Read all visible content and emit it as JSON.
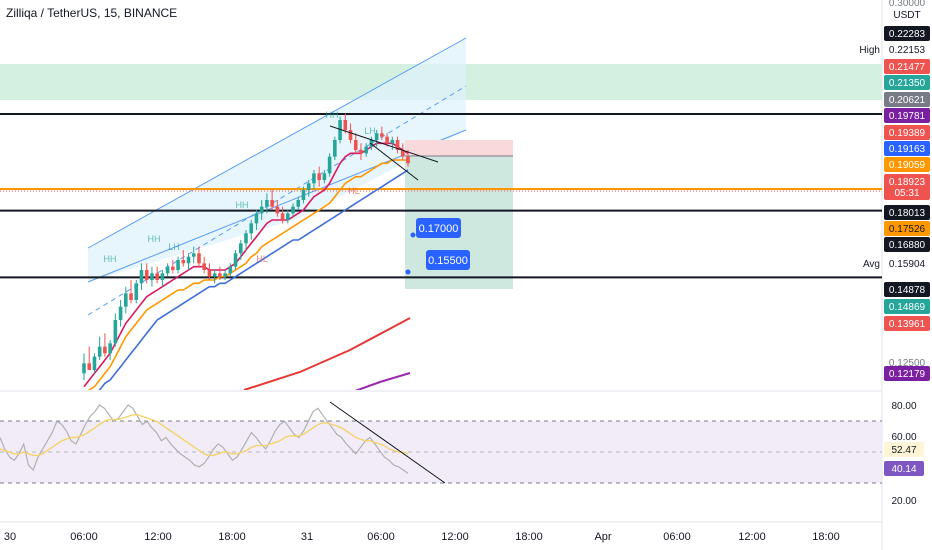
{
  "title": "Zilliqa / TetherUS, 15, BINANCE",
  "currency": "USDT",
  "colors": {
    "candle_up": "#26a69a",
    "candle_down": "#ef5350",
    "ma_red": "#e53935",
    "ma_purple": "#9c27b0",
    "ma_orange": "#ff9800",
    "ma_blue": "#3f6ed8",
    "ma_dark": "#d81b60",
    "channel": "#5b9cf6",
    "channel_fill": "#dff1fb",
    "zone": "#cfeedd",
    "target_zone": "#cfe8df",
    "stop_zone": "#fad9dc",
    "rsi_line": "#b0b0b0",
    "rsi_signal": "#f3d36b",
    "rsi_band": "#ede7f6"
  },
  "chart_data": [
    {
      "type": "candlestick",
      "name": "price",
      "x_axis": {
        "tick_labels": [
          "30",
          "06:00",
          "12:00",
          "18:00",
          "31",
          "06:00",
          "12:00",
          "18:00",
          "Apr",
          "06:00",
          "12:00",
          "18:00"
        ]
      },
      "y_axis": {
        "scale": "linear",
        "range": [
          0.115,
          0.3
        ],
        "tick_labels": [
          "0.30000",
          "0.12500"
        ]
      },
      "price_labels": [
        {
          "value": "0.22283",
          "bg": "#131722",
          "fg": "#ffffff"
        },
        {
          "value": "0.22153",
          "label": "High",
          "bg": "#ffffff",
          "fg": "#131722"
        },
        {
          "value": "0.21477",
          "bg": "#ef5350",
          "fg": "#ffffff"
        },
        {
          "value": "0.21350",
          "bg": "#26a69a",
          "fg": "#ffffff"
        },
        {
          "value": "0.20621",
          "bg": "#787b86",
          "fg": "#ffffff"
        },
        {
          "value": "0.19781",
          "bg": "#7b1fa2",
          "fg": "#ffffff"
        },
        {
          "value": "0.19389",
          "bg": "#ef5350",
          "fg": "#ffffff"
        },
        {
          "value": "0.19163",
          "bg": "#2962ff",
          "fg": "#ffffff"
        },
        {
          "value": "0.19059",
          "bg": "#ff9800",
          "fg": "#ffffff"
        },
        {
          "value": "0.18923",
          "sub": "05:31",
          "bg": "#ef5350",
          "fg": "#ffffff"
        },
        {
          "value": "0.18013",
          "bg": "#131722",
          "fg": "#ffffff"
        },
        {
          "value": "0.17526",
          "bg": "#ff9800",
          "fg": "#131722"
        },
        {
          "value": "0.16880",
          "bg": "#131722",
          "fg": "#ffffff"
        },
        {
          "value": "0.15904",
          "label": "Avg",
          "bg": "#ffffff",
          "fg": "#131722"
        },
        {
          "value": "0.14878",
          "bg": "#131722",
          "fg": "#ffffff"
        },
        {
          "value": "0.14869",
          "bg": "#26a69a",
          "fg": "#ffffff"
        },
        {
          "value": "0.13961",
          "bg": "#ef5350",
          "fg": "#ffffff"
        },
        {
          "value": "0.12179",
          "bg": "#7b1fa2",
          "fg": "#ffffff"
        }
      ],
      "horizontal_levels": [
        {
          "value": 0.1978,
          "color": "#131722"
        },
        {
          "value": 0.1753,
          "color": "#ff9800"
        },
        {
          "value": 0.1688,
          "color": "#131722"
        },
        {
          "value": 0.1488,
          "color": "#131722"
        }
      ],
      "zones": [
        {
          "from": 0.2062,
          "to": 0.2148,
          "color": "#cfeedd"
        }
      ],
      "pattern_labels": [
        "HH",
        "HH",
        "HH",
        "HH",
        "LH",
        "LH",
        "HL",
        "HL"
      ],
      "order_labels": [
        "0.17000",
        "0.15500"
      ],
      "candles": [
        {
          "o": 0.12,
          "h": 0.126,
          "l": 0.118,
          "c": 0.123
        },
        {
          "o": 0.123,
          "h": 0.128,
          "l": 0.121,
          "c": 0.121
        },
        {
          "o": 0.121,
          "h": 0.126,
          "l": 0.12,
          "c": 0.125
        },
        {
          "o": 0.125,
          "h": 0.131,
          "l": 0.124,
          "c": 0.128
        },
        {
          "o": 0.128,
          "h": 0.132,
          "l": 0.125,
          "c": 0.126
        },
        {
          "o": 0.126,
          "h": 0.13,
          "l": 0.124,
          "c": 0.129
        },
        {
          "o": 0.129,
          "h": 0.138,
          "l": 0.128,
          "c": 0.136
        },
        {
          "o": 0.136,
          "h": 0.142,
          "l": 0.134,
          "c": 0.14
        },
        {
          "o": 0.14,
          "h": 0.146,
          "l": 0.138,
          "c": 0.144
        },
        {
          "o": 0.144,
          "h": 0.148,
          "l": 0.141,
          "c": 0.142
        },
        {
          "o": 0.142,
          "h": 0.148,
          "l": 0.141,
          "c": 0.147
        },
        {
          "o": 0.147,
          "h": 0.153,
          "l": 0.145,
          "c": 0.151
        },
        {
          "o": 0.151,
          "h": 0.153,
          "l": 0.147,
          "c": 0.148
        },
        {
          "o": 0.148,
          "h": 0.152,
          "l": 0.146,
          "c": 0.15
        },
        {
          "o": 0.15,
          "h": 0.152,
          "l": 0.147,
          "c": 0.148
        },
        {
          "o": 0.148,
          "h": 0.151,
          "l": 0.146,
          "c": 0.15
        },
        {
          "o": 0.15,
          "h": 0.153,
          "l": 0.149,
          "c": 0.152
        },
        {
          "o": 0.152,
          "h": 0.154,
          "l": 0.15,
          "c": 0.151
        },
        {
          "o": 0.151,
          "h": 0.155,
          "l": 0.15,
          "c": 0.154
        },
        {
          "o": 0.154,
          "h": 0.157,
          "l": 0.152,
          "c": 0.153
        },
        {
          "o": 0.153,
          "h": 0.156,
          "l": 0.151,
          "c": 0.155
        },
        {
          "o": 0.155,
          "h": 0.158,
          "l": 0.153,
          "c": 0.156
        },
        {
          "o": 0.156,
          "h": 0.158,
          "l": 0.152,
          "c": 0.153
        },
        {
          "o": 0.153,
          "h": 0.155,
          "l": 0.15,
          "c": 0.151
        },
        {
          "o": 0.151,
          "h": 0.153,
          "l": 0.148,
          "c": 0.149
        },
        {
          "o": 0.149,
          "h": 0.151,
          "l": 0.147,
          "c": 0.15
        },
        {
          "o": 0.15,
          "h": 0.152,
          "l": 0.148,
          "c": 0.149
        },
        {
          "o": 0.149,
          "h": 0.151,
          "l": 0.148,
          "c": 0.15
        },
        {
          "o": 0.15,
          "h": 0.153,
          "l": 0.149,
          "c": 0.152
        },
        {
          "o": 0.152,
          "h": 0.157,
          "l": 0.151,
          "c": 0.156
        },
        {
          "o": 0.156,
          "h": 0.16,
          "l": 0.154,
          "c": 0.159
        },
        {
          "o": 0.159,
          "h": 0.163,
          "l": 0.157,
          "c": 0.162
        },
        {
          "o": 0.162,
          "h": 0.166,
          "l": 0.16,
          "c": 0.165
        },
        {
          "o": 0.165,
          "h": 0.169,
          "l": 0.163,
          "c": 0.168
        },
        {
          "o": 0.168,
          "h": 0.172,
          "l": 0.166,
          "c": 0.17
        },
        {
          "o": 0.17,
          "h": 0.174,
          "l": 0.168,
          "c": 0.172
        },
        {
          "o": 0.172,
          "h": 0.175,
          "l": 0.169,
          "c": 0.17
        },
        {
          "o": 0.17,
          "h": 0.172,
          "l": 0.167,
          "c": 0.168
        },
        {
          "o": 0.168,
          "h": 0.17,
          "l": 0.165,
          "c": 0.166
        },
        {
          "o": 0.166,
          "h": 0.169,
          "l": 0.165,
          "c": 0.168
        },
        {
          "o": 0.168,
          "h": 0.171,
          "l": 0.167,
          "c": 0.17
        },
        {
          "o": 0.17,
          "h": 0.173,
          "l": 0.169,
          "c": 0.172
        },
        {
          "o": 0.172,
          "h": 0.176,
          "l": 0.171,
          "c": 0.175
        },
        {
          "o": 0.175,
          "h": 0.178,
          "l": 0.173,
          "c": 0.177
        },
        {
          "o": 0.177,
          "h": 0.181,
          "l": 0.175,
          "c": 0.18
        },
        {
          "o": 0.18,
          "h": 0.182,
          "l": 0.176,
          "c": 0.178
        },
        {
          "o": 0.178,
          "h": 0.181,
          "l": 0.177,
          "c": 0.18
        },
        {
          "o": 0.18,
          "h": 0.186,
          "l": 0.179,
          "c": 0.185
        },
        {
          "o": 0.185,
          "h": 0.191,
          "l": 0.184,
          "c": 0.19
        },
        {
          "o": 0.19,
          "h": 0.197,
          "l": 0.189,
          "c": 0.196
        },
        {
          "o": 0.196,
          "h": 0.198,
          "l": 0.192,
          "c": 0.193
        },
        {
          "o": 0.193,
          "h": 0.195,
          "l": 0.189,
          "c": 0.19
        },
        {
          "o": 0.19,
          "h": 0.192,
          "l": 0.186,
          "c": 0.187
        },
        {
          "o": 0.187,
          "h": 0.189,
          "l": 0.184,
          "c": 0.186
        },
        {
          "o": 0.186,
          "h": 0.189,
          "l": 0.185,
          "c": 0.188
        },
        {
          "o": 0.188,
          "h": 0.191,
          "l": 0.187,
          "c": 0.19
        },
        {
          "o": 0.19,
          "h": 0.193,
          "l": 0.188,
          "c": 0.192
        },
        {
          "o": 0.192,
          "h": 0.194,
          "l": 0.19,
          "c": 0.191
        },
        {
          "o": 0.191,
          "h": 0.192,
          "l": 0.188,
          "c": 0.189
        },
        {
          "o": 0.189,
          "h": 0.191,
          "l": 0.187,
          "c": 0.19
        },
        {
          "o": 0.19,
          "h": 0.191,
          "l": 0.186,
          "c": 0.187
        },
        {
          "o": 0.187,
          "h": 0.189,
          "l": 0.184,
          "c": 0.185
        },
        {
          "o": 0.185,
          "h": 0.187,
          "l": 0.182,
          "c": 0.183
        }
      ],
      "moving_averages": [
        {
          "color": "#3f6ed8",
          "values": [
            0.112,
            0.113,
            0.114,
            0.115,
            0.117,
            0.118,
            0.12,
            0.122,
            0.124,
            0.126,
            0.128,
            0.13,
            0.132,
            0.134,
            0.136,
            0.137,
            0.138,
            0.139,
            0.14,
            0.141,
            0.142,
            0.143,
            0.144,
            0.145,
            0.146,
            0.146,
            0.147,
            0.147,
            0.148,
            0.149,
            0.15,
            0.151,
            0.152,
            0.153,
            0.154,
            0.155,
            0.156,
            0.157,
            0.158,
            0.159,
            0.16,
            0.16,
            0.161,
            0.162,
            0.163,
            0.164,
            0.165,
            0.166,
            0.167,
            0.168,
            0.169,
            0.17,
            0.171,
            0.172,
            0.173,
            0.174,
            0.175,
            0.176,
            0.177,
            0.178,
            0.179,
            0.18,
            0.181
          ]
        },
        {
          "color": "#ff9800",
          "values": [
            0.114,
            0.115,
            0.116,
            0.118,
            0.12,
            0.122,
            0.125,
            0.128,
            0.131,
            0.133,
            0.135,
            0.137,
            0.139,
            0.14,
            0.141,
            0.142,
            0.143,
            0.144,
            0.145,
            0.145,
            0.146,
            0.147,
            0.147,
            0.148,
            0.148,
            0.148,
            0.149,
            0.149,
            0.15,
            0.151,
            0.152,
            0.153,
            0.155,
            0.156,
            0.158,
            0.159,
            0.16,
            0.161,
            0.162,
            0.163,
            0.164,
            0.165,
            0.166,
            0.167,
            0.168,
            0.169,
            0.17,
            0.171,
            0.173,
            0.175,
            0.177,
            0.178,
            0.179,
            0.179,
            0.18,
            0.181,
            0.182,
            0.183,
            0.183,
            0.184,
            0.184,
            0.184,
            0.184
          ]
        },
        {
          "color": "#d81b60",
          "values": [
            0.116,
            0.118,
            0.12,
            0.122,
            0.124,
            0.126,
            0.129,
            0.132,
            0.135,
            0.137,
            0.139,
            0.141,
            0.143,
            0.144,
            0.145,
            0.146,
            0.147,
            0.148,
            0.149,
            0.15,
            0.151,
            0.152,
            0.152,
            0.152,
            0.151,
            0.151,
            0.151,
            0.151,
            0.152,
            0.153,
            0.155,
            0.157,
            0.159,
            0.161,
            0.163,
            0.165,
            0.166,
            0.166,
            0.166,
            0.166,
            0.167,
            0.168,
            0.169,
            0.171,
            0.173,
            0.174,
            0.175,
            0.177,
            0.18,
            0.183,
            0.185,
            0.186,
            0.186,
            0.186,
            0.187,
            0.188,
            0.189,
            0.189,
            0.189,
            0.189,
            0.188,
            0.187,
            0.186
          ]
        }
      ]
    },
    {
      "type": "line",
      "name": "RSI",
      "y_axis": {
        "range": [
          10,
          90
        ],
        "tick_labels": [
          "80.00",
          "60.00",
          "20.00"
        ]
      },
      "value_labels": [
        {
          "value": "52.47",
          "bg": "#fff4d6",
          "fg": "#131722"
        },
        {
          "value": "40.14",
          "bg": "#7e57c2",
          "fg": "#ffffff"
        }
      ],
      "bands": [
        70,
        30
      ],
      "series": [
        {
          "values": [
            62,
            55,
            50,
            48,
            52,
            58,
            45,
            42,
            50,
            55,
            60,
            65,
            72,
            70,
            66,
            60,
            58,
            64,
            70,
            75,
            78,
            82,
            80,
            76,
            72,
            74,
            78,
            82,
            80,
            75,
            70,
            72,
            68,
            65,
            60,
            62,
            58,
            55,
            52,
            50,
            48,
            45,
            44,
            46,
            50,
            55,
            58,
            56,
            52,
            48,
            50,
            55,
            60,
            65,
            62,
            58,
            55,
            60,
            66,
            70,
            72,
            68,
            64,
            62,
            66,
            72,
            78,
            80,
            76,
            72,
            68,
            64,
            62,
            58,
            55,
            52,
            56,
            60,
            62,
            58,
            54,
            50,
            48,
            45,
            44,
            42,
            40
          ]
        },
        {
          "values": [
            55,
            54,
            53,
            52,
            52,
            53,
            52,
            51,
            51,
            52,
            54,
            56,
            58,
            60,
            61,
            62,
            62,
            63,
            64,
            66,
            68,
            70,
            72,
            73,
            73,
            73,
            74,
            75,
            76,
            76,
            75,
            74,
            73,
            72,
            70,
            68,
            66,
            64,
            62,
            60,
            58,
            56,
            54,
            52,
            51,
            51,
            52,
            53,
            53,
            52,
            52,
            53,
            54,
            56,
            57,
            57,
            57,
            58,
            59,
            60,
            62,
            63,
            63,
            63,
            64,
            66,
            68,
            70,
            71,
            71,
            70,
            69,
            68,
            66,
            64,
            62,
            61,
            60,
            60,
            59,
            58,
            57,
            55,
            54,
            53,
            53,
            52
          ]
        }
      ]
    }
  ]
}
